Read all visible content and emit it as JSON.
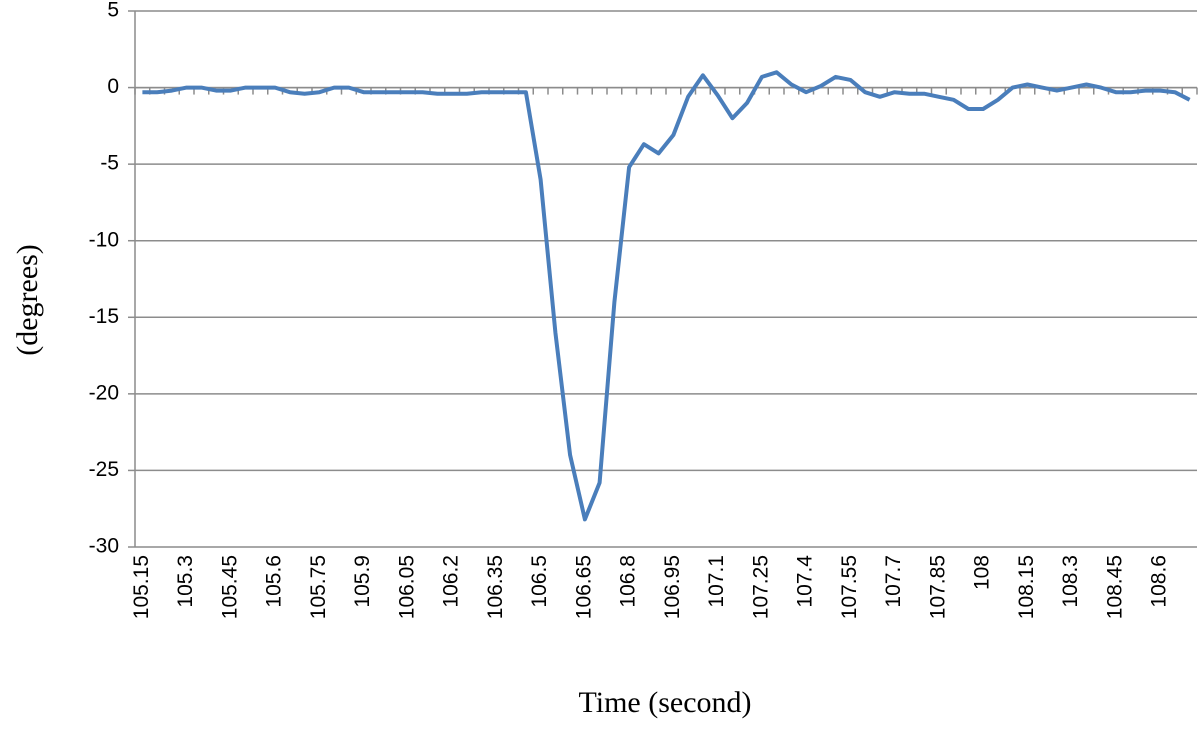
{
  "chart_data": {
    "type": "line",
    "y_label": "(degrees)",
    "x_label": "Time (second)",
    "categories": [
      "105.15",
      null,
      null,
      "105.3",
      null,
      null,
      "105.45",
      null,
      null,
      "105.6",
      null,
      null,
      "105.75",
      null,
      null,
      "105.9",
      null,
      null,
      "106.05",
      null,
      null,
      "106.2",
      null,
      null,
      "106.35",
      null,
      null,
      "106.5",
      null,
      null,
      "106.65",
      null,
      null,
      "106.8",
      null,
      null,
      "106.95",
      null,
      null,
      "107.1",
      null,
      null,
      "107.25",
      null,
      null,
      "107.4",
      null,
      null,
      "107.55",
      null,
      null,
      "107.7",
      null,
      null,
      "107.85",
      null,
      null,
      "108",
      null,
      null,
      "108.15",
      null,
      null,
      "108.3",
      null,
      null,
      "108.45",
      null,
      null,
      "108.6",
      null,
      null
    ],
    "values": [
      -0.3,
      -0.3,
      -0.2,
      0,
      0,
      -0.2,
      -0.2,
      0,
      0,
      0,
      -0.3,
      -0.4,
      -0.3,
      0,
      0,
      -0.3,
      -0.3,
      -0.3,
      -0.3,
      -0.3,
      -0.4,
      -0.4,
      -0.4,
      -0.3,
      -0.3,
      -0.3,
      -0.3,
      -6,
      -16,
      -24,
      -28.2,
      -25.8,
      -14,
      -5.2,
      -3.7,
      -4.3,
      -3.1,
      -0.6,
      0.8,
      -0.5,
      -2,
      -1,
      0.7,
      1,
      0.2,
      -0.3,
      0.1,
      0.7,
      0.5,
      -0.3,
      -0.6,
      -0.3,
      -0.4,
      -0.4,
      -0.6,
      -0.8,
      -1.4,
      -1.4,
      -0.8,
      0,
      0.2,
      0,
      -0.2,
      0,
      0.2,
      0,
      -0.3,
      -0.3,
      -0.2,
      -0.2,
      -0.3,
      -0.8
    ],
    "color": "#4a7ebb",
    "ylim": [
      -30,
      5
    ],
    "yticks": [
      -30,
      -25,
      -20,
      -15,
      -10,
      -5,
      0,
      5
    ],
    "grid": true
  }
}
